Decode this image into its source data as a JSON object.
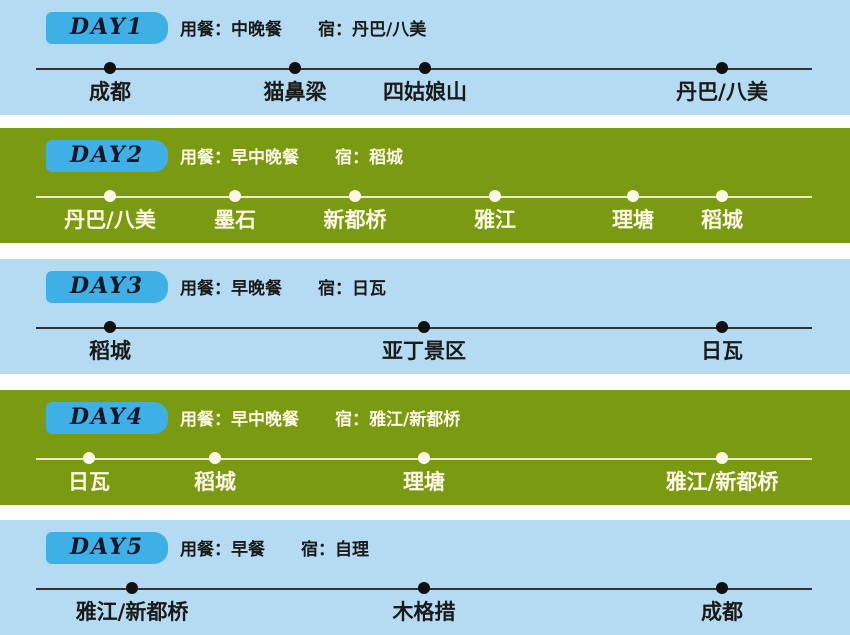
{
  "days": [
    {
      "badge": "DAY1",
      "meal": "用餐：中晚餐",
      "lodging": "宿：丹巴/八美",
      "theme": "blue",
      "stops": [
        "成都",
        "猫鼻梁",
        "四姑娘山",
        "丹巴/八美"
      ]
    },
    {
      "badge": "DAY2",
      "meal": "用餐：早中晚餐",
      "lodging": "宿：稻城",
      "theme": "green",
      "stops": [
        "丹巴/八美",
        "墨石",
        "新都桥",
        "雅江",
        "理塘",
        "稻城"
      ]
    },
    {
      "badge": "DAY3",
      "meal": "用餐：早晚餐",
      "lodging": "宿：日瓦",
      "theme": "blue",
      "stops": [
        "稻城",
        "亚丁景区",
        "日瓦"
      ]
    },
    {
      "badge": "DAY4",
      "meal": "用餐：早中晚餐",
      "lodging": "宿：雅江/新都桥",
      "theme": "green",
      "stops": [
        "日瓦",
        "稻城",
        "理塘",
        "雅江/新都桥"
      ]
    },
    {
      "badge": "DAY5",
      "meal": "用餐：早餐",
      "lodging": "宿：自理",
      "theme": "blue",
      "stops": [
        "雅江/新都桥",
        "木格措",
        "成都"
      ]
    }
  ],
  "colors": {
    "blue_band": "#b4dbf1",
    "green_band": "#7a9a12",
    "badge": "#3fb0e6"
  }
}
